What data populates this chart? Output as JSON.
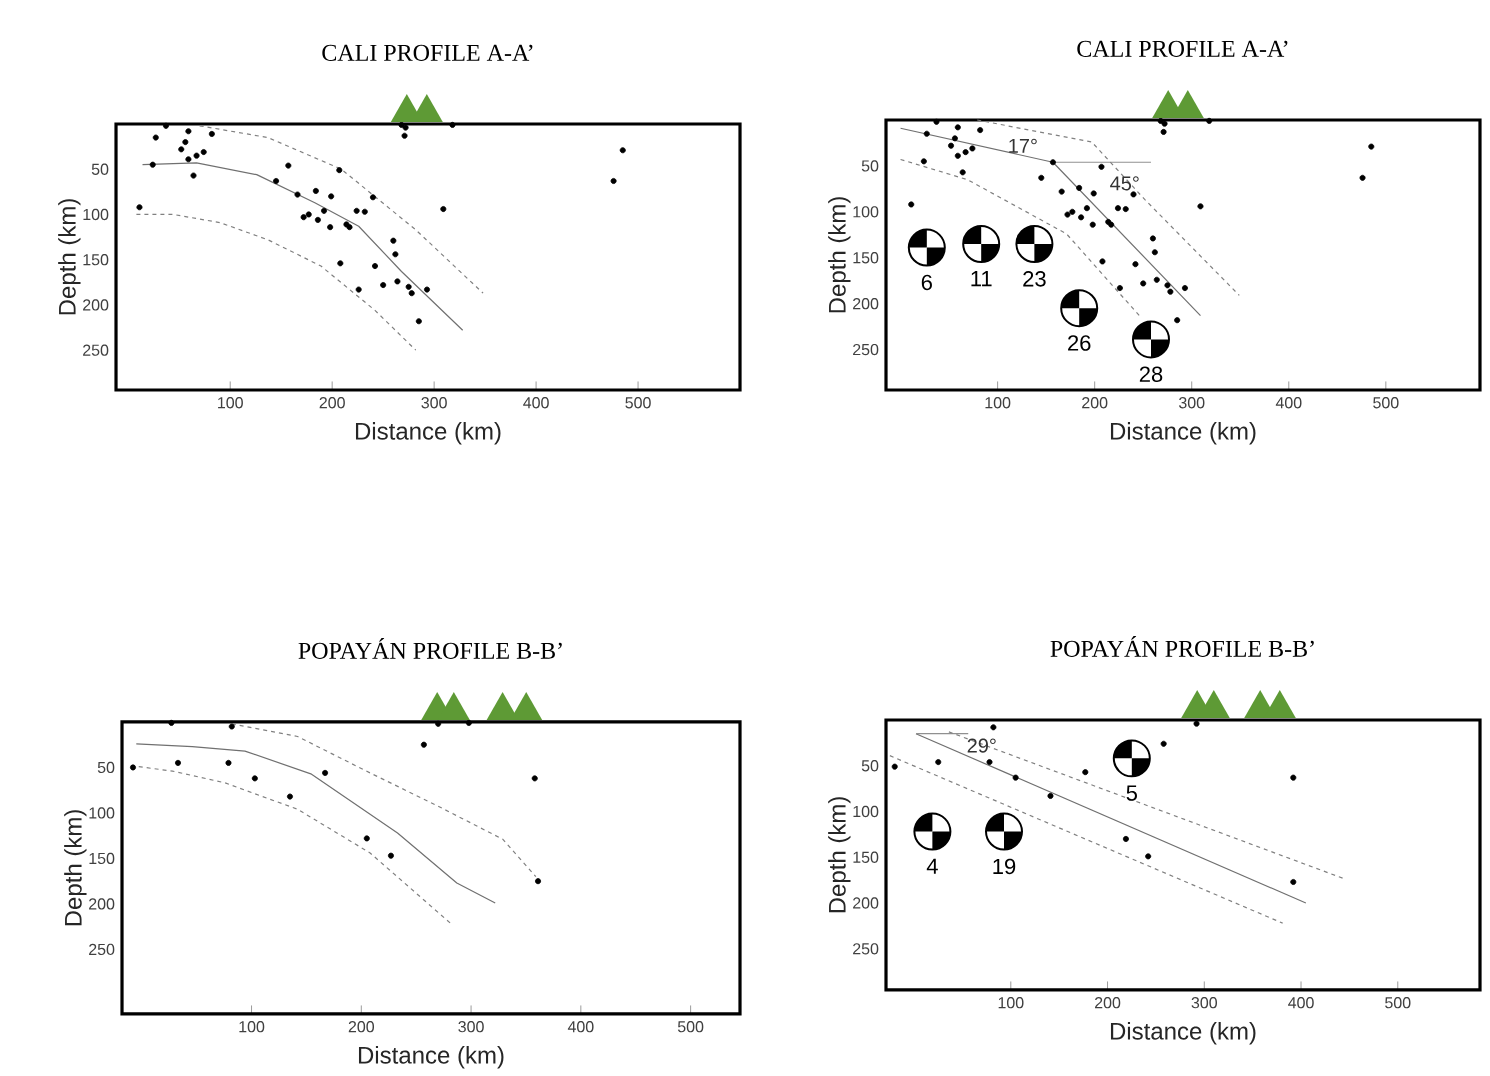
{
  "chart_data": [
    {
      "type": "scatter",
      "title": "CALI PROFILE A-A’",
      "xlabel": "Distance (km)",
      "ylabel": "Depth (km)",
      "xlim": [
        -12,
        600
      ],
      "ylim": [
        294,
        0
      ],
      "xticks": [
        100,
        200,
        300,
        400,
        500
      ],
      "yticks": [
        50,
        100,
        150,
        200,
        250
      ],
      "series": [
        {
          "type": "scatter",
          "marker": "circle",
          "color": "#000000",
          "x": [
            37,
            27,
            59,
            82,
            56,
            52,
            59,
            67,
            74,
            24,
            64,
            11,
            157,
            145,
            207,
            166,
            184,
            199,
            177,
            172,
            186,
            192,
            198,
            214,
            217,
            224,
            232,
            240,
            208,
            242,
            226,
            260,
            262,
            264,
            250,
            275,
            278,
            293,
            285,
            309,
            268,
            272,
            271,
            318,
            476,
            485
          ],
          "values": [
            2,
            15,
            8,
            11,
            20,
            28,
            39,
            35,
            31,
            45,
            57,
            92,
            46,
            63,
            51,
            78,
            74,
            80,
            100,
            103,
            106,
            96,
            114,
            111,
            114,
            96,
            97,
            81,
            154,
            157,
            183,
            129,
            144,
            174,
            178,
            180,
            187,
            183,
            218,
            94,
            1,
            4,
            13,
            1,
            63,
            29
          ]
        },
        {
          "type": "line",
          "line_style": "solid",
          "color": "#707070",
          "x": [
            14,
            67,
            126,
            183,
            226,
            268,
            328
          ],
          "values": [
            45,
            43,
            56,
            87,
            113,
            163,
            228
          ]
        },
        {
          "type": "line",
          "line_style": "dashed",
          "color": "#808080",
          "x": [
            70,
            137,
            209,
            282,
            348
          ],
          "values": [
            2,
            15,
            50,
            117,
            187
          ]
        },
        {
          "type": "line",
          "line_style": "dashed",
          "color": "#808080",
          "x": [
            8,
            44,
            90,
            137,
            189,
            242,
            282
          ],
          "values": [
            100,
            100,
            109,
            128,
            157,
            206,
            250
          ]
        }
      ]
    },
    {
      "type": "scatter",
      "title": "CALI PROFILE A-A’",
      "xlabel": "Distance (km)",
      "ylabel": "Depth (km)",
      "xlim": [
        -15,
        597
      ],
      "ylim": [
        294,
        0
      ],
      "xticks": [
        100,
        200,
        300,
        400,
        500
      ],
      "yticks": [
        50,
        100,
        150,
        200,
        250
      ],
      "series": [
        {
          "type": "scatter",
          "marker": "circle",
          "color": "#000000",
          "x": [
            37,
            27,
            59,
            82,
            56,
            52,
            59,
            67,
            74,
            24,
            64,
            11,
            157,
            145,
            207,
            166,
            184,
            199,
            177,
            172,
            186,
            192,
            198,
            214,
            217,
            224,
            232,
            240,
            208,
            242,
            226,
            260,
            262,
            264,
            250,
            275,
            278,
            293,
            285,
            309,
            268,
            272,
            271,
            318,
            476,
            485
          ],
          "values": [
            2,
            15,
            8,
            11,
            20,
            28,
            39,
            35,
            31,
            45,
            57,
            92,
            46,
            63,
            51,
            78,
            74,
            80,
            100,
            103,
            106,
            96,
            114,
            111,
            114,
            96,
            97,
            81,
            154,
            157,
            183,
            129,
            144,
            174,
            178,
            180,
            187,
            183,
            218,
            94,
            1,
            4,
            13,
            1,
            63,
            29
          ]
        },
        {
          "type": "line",
          "line_style": "solid",
          "color": "#707070",
          "x": [
            0,
            157,
            309
          ],
          "values": [
            9,
            46,
            213
          ]
        },
        {
          "type": "line",
          "line_style": "solid",
          "color": "#909090",
          "x": [
            157,
            258
          ],
          "values": [
            46,
            46
          ]
        },
        {
          "type": "line",
          "line_style": "dashed",
          "color": "#808080",
          "x": [
            79,
            197,
            252,
            349
          ],
          "values": [
            0,
            24,
            87,
            191
          ]
        },
        {
          "type": "line",
          "line_style": "dashed",
          "color": "#808080",
          "x": [
            0,
            69,
            171,
            246
          ],
          "values": [
            43,
            65,
            124,
            213
          ]
        }
      ],
      "annotations": [
        {
          "text": "6",
          "x": 27,
          "y": 139
        },
        {
          "text": "11",
          "x": 83,
          "y": 135
        },
        {
          "text": "23",
          "x": 138,
          "y": 135
        },
        {
          "text": "26",
          "x": 184,
          "y": 205
        },
        {
          "text": "28",
          "x": 258,
          "y": 239
        },
        {
          "text": "17°",
          "x": 126,
          "y": 28
        },
        {
          "text": "45°",
          "x": 231,
          "y": 69
        }
      ]
    },
    {
      "type": "scatter",
      "title": "POPAYÁN PROFILE B-B’",
      "xlabel": "Distance (km)",
      "ylabel": "Depth (km)",
      "xlim": [
        -18,
        545
      ],
      "ylim": [
        321,
        0
      ],
      "xticks": [
        100,
        200,
        300,
        400,
        500
      ],
      "yticks": [
        50,
        100,
        150,
        200,
        250
      ],
      "series": [
        {
          "type": "scatter",
          "marker": "circle",
          "color": "#000000",
          "x": [
            -8,
            33,
            79,
            103,
            135,
            167,
            82,
            205,
            227,
            257,
            270,
            27,
            298,
            358,
            361
          ],
          "values": [
            50,
            45,
            45,
            62,
            82,
            56,
            5,
            128,
            147,
            25,
            2,
            1,
            1,
            62,
            175
          ]
        },
        {
          "type": "line",
          "line_style": "solid",
          "color": "#707070",
          "x": [
            -5,
            46,
            94,
            154,
            233,
            287,
            322
          ],
          "values": [
            24,
            27,
            32,
            57,
            122,
            177,
            199
          ]
        },
        {
          "type": "line",
          "line_style": "dashed",
          "color": "#808080",
          "x": [
            82,
            142,
            208,
            269,
            329,
            359
          ],
          "values": [
            2,
            16,
            56,
            92,
            129,
            170
          ]
        },
        {
          "type": "line",
          "line_style": "dashed",
          "color": "#808080",
          "x": [
            -10,
            28,
            76,
            142,
            208,
            281
          ],
          "values": [
            48,
            54,
            67,
            96,
            144,
            221
          ]
        }
      ]
    },
    {
      "type": "scatter",
      "title": "POPAYÁN PROFILE B-B’",
      "xlabel": "Distance (km)",
      "ylabel": "Depth (km)",
      "xlim": [
        -29,
        585
      ],
      "ylim": [
        295,
        0
      ],
      "xticks": [
        100,
        200,
        300,
        400,
        500
      ],
      "yticks": [
        50,
        100,
        150,
        200,
        250
      ],
      "series": [
        {
          "type": "scatter",
          "marker": "circle",
          "color": "#000000",
          "x": [
            -20,
            25,
            78,
            105,
            141,
            177,
            82,
            219,
            242,
            258,
            292,
            392,
            392
          ],
          "values": [
            51,
            46,
            46,
            63,
            83,
            57,
            8,
            130,
            149,
            26,
            4,
            63,
            177
          ]
        },
        {
          "type": "line",
          "line_style": "solid",
          "color": "#707070",
          "x": [
            2,
            405
          ],
          "values": [
            15,
            200
          ]
        },
        {
          "type": "line",
          "line_style": "solid",
          "color": "#909090",
          "x": [
            2,
            56
          ],
          "values": [
            15,
            15
          ]
        },
        {
          "type": "line",
          "line_style": "dashed",
          "color": "#808080",
          "x": [
            36,
            446
          ],
          "values": [
            13,
            174
          ]
        },
        {
          "type": "line",
          "line_style": "dashed",
          "color": "#808080",
          "x": [
            -25,
            381
          ],
          "values": [
            39,
            222
          ]
        }
      ],
      "annotations": [
        {
          "text": "5",
          "x": 225,
          "y": 42
        },
        {
          "text": "4",
          "x": 19,
          "y": 122
        },
        {
          "text": "19",
          "x": 93,
          "y": 122
        },
        {
          "text": "29°",
          "x": 70,
          "y": 28
        }
      ]
    }
  ]
}
